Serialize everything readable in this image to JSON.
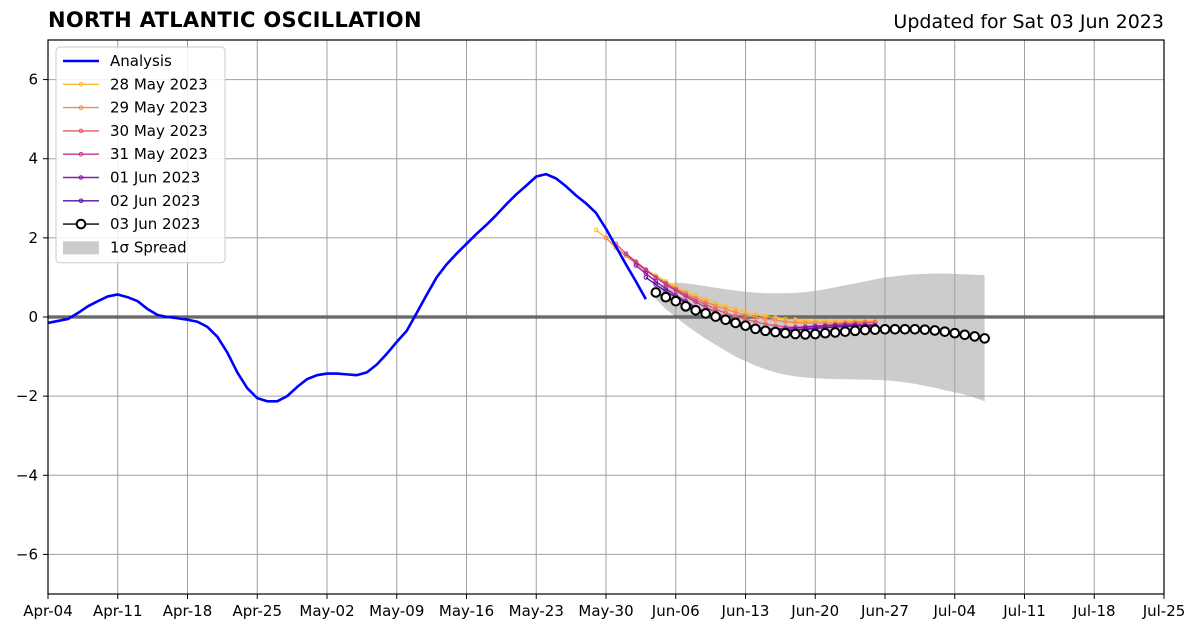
{
  "header": {
    "title": "NORTH ATLANTIC OSCILLATION",
    "updated": "Updated for Sat 03 Jun 2023"
  },
  "chart_data": {
    "type": "line",
    "title": "NORTH ATLANTIC OSCILLATION",
    "xlim": [
      "2023-04-04",
      "2023-07-25"
    ],
    "ylim": [
      -7,
      7
    ],
    "yticks": [
      -6,
      -4,
      -2,
      0,
      2,
      4,
      6
    ],
    "ytick_labels": [
      "−6",
      "−4",
      "−2",
      "0",
      "2",
      "4",
      "6"
    ],
    "xticks": [
      "2023-04-04",
      "2023-04-11",
      "2023-04-18",
      "2023-04-25",
      "2023-05-02",
      "2023-05-09",
      "2023-05-16",
      "2023-05-23",
      "2023-05-30",
      "2023-06-06",
      "2023-06-13",
      "2023-06-20",
      "2023-06-27",
      "2023-07-04",
      "2023-07-11",
      "2023-07-18",
      "2023-07-25"
    ],
    "xtick_labels": [
      "Apr-04",
      "Apr-11",
      "Apr-18",
      "Apr-25",
      "May-02",
      "May-09",
      "May-16",
      "May-23",
      "May-30",
      "Jun-06",
      "Jun-13",
      "Jun-20",
      "Jun-27",
      "Jul-04",
      "Jul-11",
      "Jul-18",
      "Jul-25"
    ],
    "grid": true,
    "zero_line": true,
    "legend_position": "top-left",
    "analysis": {
      "name": "Analysis",
      "color": "#0000ff",
      "start": "2023-04-04",
      "values": [
        -0.15,
        -0.1,
        -0.05,
        0.1,
        0.27,
        0.4,
        0.52,
        0.57,
        0.5,
        0.4,
        0.2,
        0.05,
        0.0,
        -0.03,
        -0.07,
        -0.12,
        -0.25,
        -0.5,
        -0.9,
        -1.4,
        -1.8,
        -2.05,
        -2.13,
        -2.13,
        -2.0,
        -1.77,
        -1.57,
        -1.47,
        -1.43,
        -1.43,
        -1.45,
        -1.47,
        -1.4,
        -1.2,
        -0.93,
        -0.63,
        -0.35,
        0.1,
        0.56,
        1.0,
        1.33,
        1.6,
        1.85,
        2.1,
        2.33,
        2.58,
        2.85,
        3.1,
        3.32,
        3.55,
        3.61,
        3.5,
        3.3,
        3.07,
        2.87,
        2.63,
        2.23,
        1.78,
        1.33,
        0.9,
        0.45
      ]
    },
    "forecasts": [
      {
        "name": "28 May 2023",
        "color": "#ffbb33",
        "start": "2023-05-29",
        "values": [
          2.2,
          2.0,
          1.75,
          1.55,
          1.35,
          1.2,
          1.05,
          0.9,
          0.78,
          0.65,
          0.55,
          0.45,
          0.35,
          0.27,
          0.2,
          0.12,
          0.06,
          0.02,
          -0.02,
          -0.05,
          -0.07,
          -0.09,
          -0.1,
          -0.1,
          -0.1,
          -0.1,
          -0.1,
          -0.1,
          -0.1
        ]
      },
      {
        "name": "29 May 2023",
        "color": "#f4894a",
        "start": "2023-05-30",
        "values": [
          2.0,
          1.75,
          1.55,
          1.35,
          1.18,
          1.0,
          0.86,
          0.72,
          0.6,
          0.48,
          0.38,
          0.28,
          0.2,
          0.12,
          0.05,
          0.0,
          -0.05,
          -0.08,
          -0.12,
          -0.14,
          -0.15,
          -0.15,
          -0.15,
          -0.15,
          -0.14,
          -0.13,
          -0.12,
          -0.12
        ]
      },
      {
        "name": "30 May 2023",
        "color": "#e05a6e",
        "start": "2023-05-31",
        "values": [
          1.85,
          1.6,
          1.4,
          1.2,
          1.0,
          0.85,
          0.7,
          0.56,
          0.43,
          0.32,
          0.2,
          0.1,
          0.02,
          -0.06,
          -0.12,
          -0.18,
          -0.22,
          -0.25,
          -0.26,
          -0.25,
          -0.23,
          -0.21,
          -0.19,
          -0.17,
          -0.16,
          -0.15,
          -0.14
        ]
      },
      {
        "name": "31 May 2023",
        "color": "#c0358c",
        "start": "2023-06-01",
        "values": [
          1.6,
          1.38,
          1.18,
          1.0,
          0.82,
          0.67,
          0.52,
          0.38,
          0.25,
          0.12,
          0.0,
          -0.1,
          -0.18,
          -0.25,
          -0.3,
          -0.32,
          -0.32,
          -0.31,
          -0.29,
          -0.26,
          -0.23,
          -0.21,
          -0.2,
          -0.2,
          -0.2,
          -0.2
        ]
      },
      {
        "name": "01 Jun 2023",
        "color": "#8e17a8",
        "start": "2023-06-02",
        "values": [
          1.3,
          1.1,
          0.9,
          0.72,
          0.55,
          0.4,
          0.25,
          0.12,
          0.0,
          -0.1,
          -0.18,
          -0.24,
          -0.28,
          -0.3,
          -0.3,
          -0.29,
          -0.27,
          -0.25,
          -0.23,
          -0.22,
          -0.21,
          -0.2,
          -0.2,
          -0.2,
          -0.2
        ]
      },
      {
        "name": "02 Jun 2023",
        "color": "#5a0fa0",
        "start": "2023-06-03",
        "values": [
          1.0,
          0.82,
          0.65,
          0.5,
          0.36,
          0.22,
          0.1,
          -0.02,
          -0.12,
          -0.2,
          -0.26,
          -0.3,
          -0.33,
          -0.34,
          -0.34,
          -0.33,
          -0.31,
          -0.29,
          -0.27,
          -0.25,
          -0.24,
          -0.23,
          -0.23,
          -0.23
        ]
      }
    ],
    "current": {
      "name": "03 Jun 2023",
      "color": "#000000",
      "start": "2023-06-04",
      "values": [
        0.62,
        0.5,
        0.4,
        0.27,
        0.17,
        0.09,
        0.01,
        -0.07,
        -0.15,
        -0.22,
        -0.3,
        -0.35,
        -0.38,
        -0.41,
        -0.43,
        -0.44,
        -0.43,
        -0.41,
        -0.39,
        -0.37,
        -0.35,
        -0.33,
        -0.32,
        -0.31,
        -0.31,
        -0.31,
        -0.31,
        -0.32,
        -0.34,
        -0.37,
        -0.41,
        -0.45,
        -0.49,
        -0.54
      ]
    },
    "spread": {
      "name": "1σ Spread",
      "color": "#cccccc",
      "start": "2023-06-04",
      "upper": [
        0.75,
        0.82,
        0.87,
        0.85,
        0.82,
        0.78,
        0.74,
        0.7,
        0.67,
        0.64,
        0.62,
        0.6,
        0.6,
        0.6,
        0.61,
        0.63,
        0.66,
        0.7,
        0.75,
        0.8,
        0.85,
        0.9,
        0.95,
        1.0,
        1.03,
        1.06,
        1.08,
        1.09,
        1.1,
        1.1,
        1.09,
        1.08,
        1.07,
        1.06
      ],
      "lower": [
        0.45,
        0.2,
        0.0,
        -0.2,
        -0.38,
        -0.55,
        -0.7,
        -0.85,
        -1.0,
        -1.12,
        -1.23,
        -1.32,
        -1.4,
        -1.46,
        -1.5,
        -1.53,
        -1.55,
        -1.56,
        -1.57,
        -1.57,
        -1.58,
        -1.58,
        -1.59,
        -1.6,
        -1.62,
        -1.65,
        -1.69,
        -1.74,
        -1.79,
        -1.85,
        -1.9,
        -1.96,
        -2.04,
        -2.13
      ]
    }
  }
}
